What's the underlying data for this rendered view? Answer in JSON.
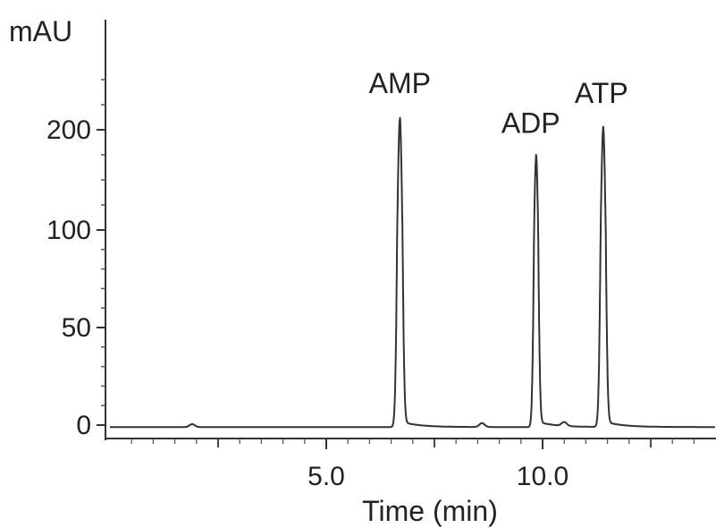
{
  "chart_data": {
    "type": "line",
    "ylabel": "mAU",
    "xlabel": "Time (min)",
    "x_ticks": [
      {
        "value": 5.0,
        "label": "5.0"
      },
      {
        "value": 10.0,
        "label": "10.0"
      }
    ],
    "y_ticks": [
      {
        "value": 0,
        "label": "0"
      },
      {
        "value": 50,
        "label": "50"
      },
      {
        "value": 100,
        "label": "100"
      },
      {
        "value": 200,
        "label": "200"
      }
    ],
    "xlim": [
      0.0,
      14.0
    ],
    "grid": false,
    "baseline": -1,
    "peaks": [
      {
        "name": "AMP",
        "time": 6.7,
        "height": 210
      },
      {
        "name": "ADP",
        "time": 9.85,
        "height": 172
      },
      {
        "name": "ATP",
        "time": 11.4,
        "height": 200
      }
    ],
    "minor_bumps": [
      {
        "time": 1.9,
        "height": 1.5
      },
      {
        "time": 8.6,
        "height": 2
      },
      {
        "time": 10.5,
        "height": 2
      }
    ],
    "line_color": "#333333"
  }
}
